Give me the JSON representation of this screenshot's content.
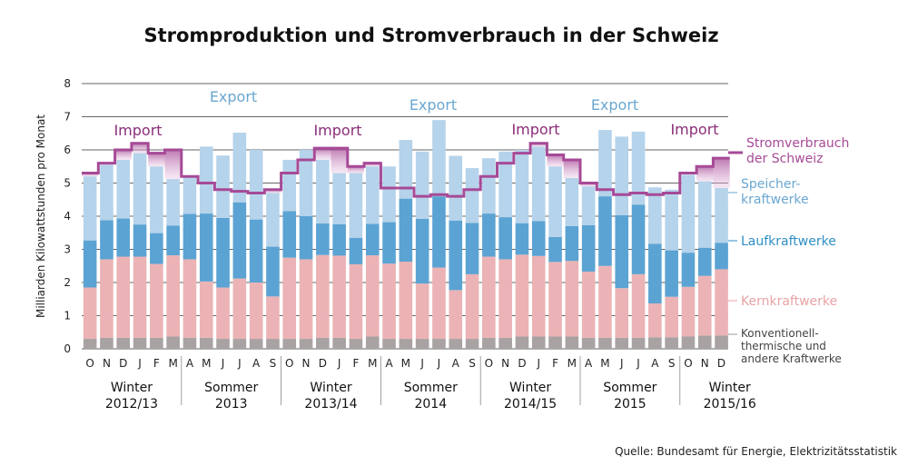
{
  "chart_data": {
    "type": "bar",
    "title": "Stromproduktion und Stromverbrauch in der Schweiz",
    "ylabel": "Milliarden Kilowattstunden pro Monat",
    "ylim": [
      0,
      8
    ],
    "yticks": [
      0,
      1,
      2,
      3,
      4,
      5,
      6,
      7,
      8
    ],
    "grid": true,
    "stacked": true,
    "categories": [
      "O",
      "N",
      "D",
      "J",
      "F",
      "M",
      "A",
      "M",
      "J",
      "J",
      "A",
      "S",
      "O",
      "N",
      "D",
      "J",
      "F",
      "M",
      "A",
      "M",
      "J",
      "J",
      "A",
      "S",
      "O",
      "N",
      "D",
      "J",
      "F",
      "M",
      "A",
      "M",
      "J",
      "J",
      "A",
      "S",
      "O",
      "N",
      "D"
    ],
    "seasons": [
      {
        "line1": "Winter",
        "line2": "2012/13"
      },
      {
        "line1": "Sommer",
        "line2": "2013"
      },
      {
        "line1": "Winter",
        "line2": "2013/14"
      },
      {
        "line1": "Sommer",
        "line2": "2014"
      },
      {
        "line1": "Winter",
        "line2": "2014/15"
      },
      {
        "line1": "Sommer",
        "line2": "2015"
      },
      {
        "line1": "Winter",
        "line2": "2015/16"
      }
    ],
    "series": [
      {
        "name": "Konventionell-thermische und andere Kraftwerke",
        "color": "#a8a2a2",
        "values": [
          0.3,
          0.33,
          0.33,
          0.33,
          0.33,
          0.37,
          0.33,
          0.33,
          0.3,
          0.3,
          0.3,
          0.3,
          0.3,
          0.3,
          0.33,
          0.33,
          0.3,
          0.37,
          0.3,
          0.3,
          0.3,
          0.3,
          0.3,
          0.3,
          0.33,
          0.33,
          0.37,
          0.37,
          0.37,
          0.37,
          0.33,
          0.33,
          0.33,
          0.33,
          0.35,
          0.35,
          0.37,
          0.4,
          0.4
        ]
      },
      {
        "name": "Kernkraftwerke",
        "color": "#ebb3b5",
        "values": [
          1.55,
          2.37,
          2.45,
          2.45,
          2.23,
          2.45,
          2.37,
          1.7,
          1.55,
          1.82,
          1.7,
          1.28,
          2.45,
          2.4,
          2.5,
          2.48,
          2.25,
          2.45,
          2.27,
          2.33,
          1.67,
          2.15,
          1.47,
          1.95,
          2.45,
          2.37,
          2.47,
          2.43,
          2.25,
          2.28,
          2.0,
          2.17,
          1.5,
          1.92,
          1.02,
          1.22,
          1.5,
          1.8,
          2.0
        ]
      },
      {
        "name": "Laufkraftwerke",
        "color": "#5ba3d3",
        "values": [
          1.42,
          1.18,
          1.15,
          0.97,
          0.93,
          0.9,
          1.37,
          2.05,
          2.1,
          2.3,
          1.9,
          1.5,
          1.4,
          1.3,
          0.95,
          0.95,
          0.8,
          0.95,
          1.25,
          1.9,
          1.95,
          2.15,
          2.1,
          1.55,
          1.3,
          1.27,
          0.95,
          1.05,
          0.75,
          1.05,
          1.4,
          2.1,
          2.2,
          2.1,
          1.8,
          1.4,
          1.03,
          0.85,
          0.8
        ]
      },
      {
        "name": "Speicherkraftwerke",
        "color": "#b5d3ea",
        "values": [
          1.93,
          1.67,
          1.77,
          2.15,
          2.01,
          1.4,
          1.1,
          2.02,
          1.88,
          2.1,
          2.1,
          1.62,
          1.55,
          2.0,
          1.92,
          1.54,
          1.95,
          1.73,
          1.68,
          1.77,
          2.03,
          2.3,
          1.95,
          1.65,
          1.67,
          1.98,
          2.21,
          2.25,
          2.13,
          1.45,
          1.17,
          2.0,
          2.37,
          2.2,
          1.7,
          1.83,
          2.35,
          2.0,
          1.65
        ]
      }
    ],
    "consumption": {
      "name": "Stromverbrauch der Schweiz",
      "color": "#a64a97",
      "values": [
        5.3,
        5.6,
        6.0,
        6.2,
        5.9,
        6.0,
        5.2,
        5.0,
        4.8,
        4.75,
        4.7,
        4.8,
        5.3,
        5.7,
        6.05,
        6.05,
        5.5,
        5.6,
        4.85,
        4.85,
        4.6,
        4.65,
        4.6,
        4.8,
        5.2,
        5.6,
        5.9,
        6.2,
        5.85,
        5.7,
        5.0,
        4.8,
        4.65,
        4.7,
        4.65,
        4.7,
        5.3,
        5.5,
        5.75
      ]
    },
    "annotations": {
      "export": [
        "Export",
        "Export",
        "Export"
      ],
      "import": [
        "Import",
        "Import",
        "Import",
        "Import"
      ]
    },
    "legend": {
      "consumption": [
        "Stromverbrauch",
        "der Schweiz"
      ],
      "speicher": [
        "Speicher-",
        "kraftwerke"
      ],
      "lauf": [
        "Laufkraftwerke"
      ],
      "kern": [
        "Kernkraftwerke"
      ],
      "konv": [
        "Konventionell-",
        "thermische und",
        "andere Kraftwerke"
      ]
    },
    "source": "Quelle: Bundesamt für Energie, Elektrizitätsstatistik"
  }
}
